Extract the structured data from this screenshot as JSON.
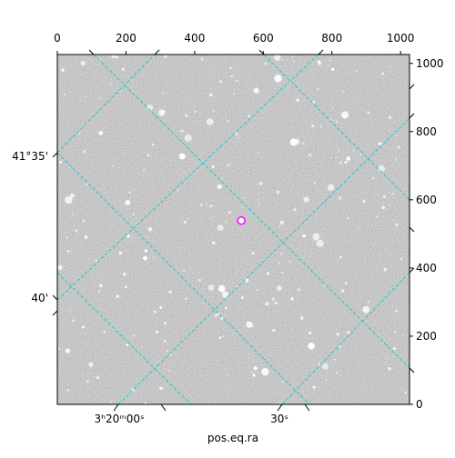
{
  "chart_data": {
    "type": "image",
    "xlabel": "pos.eq.ra",
    "xlim": [
      0,
      1026
    ],
    "ylim": [
      0,
      1026
    ],
    "xticks": [
      0,
      200,
      400,
      600,
      800,
      1000
    ],
    "yticks": [
      0,
      200,
      400,
      600,
      800,
      1000
    ],
    "ra_labels": [
      "3ʰ20ᵐ00ˢ",
      "30ˢ"
    ],
    "dec_labels": [
      "41°35'",
      "40'"
    ],
    "marker": {
      "x": 536,
      "y": 539,
      "color": "#ff00ff"
    },
    "grid_color": "#22cccc"
  }
}
